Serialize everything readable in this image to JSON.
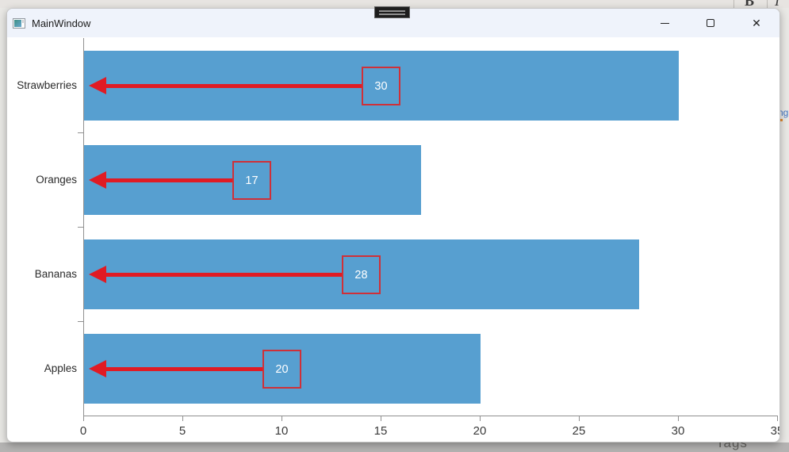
{
  "window": {
    "title": "MainWindow",
    "close_label": "✕"
  },
  "desktop_fragments": {
    "top_bold": "B",
    "top_italic": "I",
    "right_edge": "ng",
    "bottom_label": "Tags"
  },
  "chart_data": {
    "type": "bar",
    "orientation": "horizontal",
    "title": "",
    "xlabel": "",
    "ylabel": "",
    "categories": [
      "Strawberries",
      "Oranges",
      "Bananas",
      "Apples"
    ],
    "values": [
      30,
      17,
      28,
      20
    ],
    "data_labels": [
      "30",
      "17",
      "28",
      "20"
    ],
    "xticks": [
      0,
      5,
      10,
      15,
      20,
      25,
      30,
      35
    ],
    "xlim": [
      0,
      35
    ],
    "grid": false,
    "legend": null,
    "bar_color": "#579fd0",
    "arrow_color": "#e01b24",
    "box_border_color": "#cf3038",
    "label_text_color": "#ffffff"
  }
}
